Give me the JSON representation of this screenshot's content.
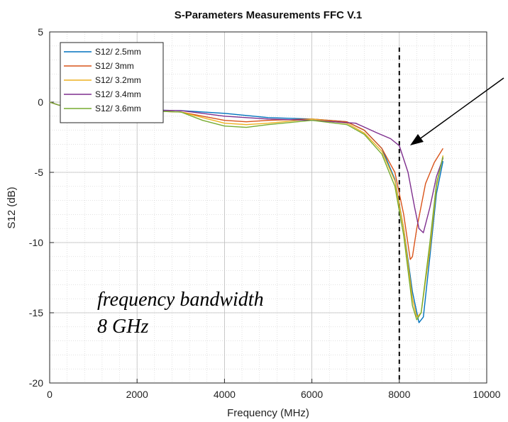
{
  "chart_data": {
    "type": "line",
    "title": "S-Parameters Measurements FFC V.1",
    "xlabel": "Frequency (MHz)",
    "ylabel": "S12 (dB)",
    "xlim": [
      0,
      10000
    ],
    "ylim": [
      -20,
      5
    ],
    "x_ticks": [
      "0",
      "2000",
      "4000",
      "6000",
      "8000",
      "10000"
    ],
    "y_ticks": [
      "-20",
      "-15",
      "-10",
      "-5",
      "0",
      "5"
    ],
    "grid": true,
    "minor_grid": true,
    "legend_position": "top-left",
    "series": [
      {
        "name": "S12/ 2.5mm",
        "color": "#0072BD",
        "x": [
          0,
          200,
          500,
          1000,
          2000,
          3000,
          4000,
          5000,
          6000,
          6800,
          7200,
          7600,
          7900,
          8100,
          8300,
          8450,
          8550,
          8700,
          8850,
          9000
        ],
        "y": [
          0,
          -0.2,
          -0.4,
          -0.5,
          -0.55,
          -0.6,
          -0.8,
          -1.1,
          -1.2,
          -1.4,
          -2.0,
          -3.3,
          -5.5,
          -9.0,
          -13.5,
          -15.7,
          -15.3,
          -11.0,
          -6.5,
          -4.2
        ]
      },
      {
        "name": "S12/ 3mm",
        "color": "#D95319",
        "x": [
          0,
          200,
          500,
          1000,
          2000,
          3000,
          3500,
          4000,
          4500,
          5000,
          6000,
          6800,
          7200,
          7600,
          7900,
          8100,
          8250,
          8300,
          8400,
          8600,
          8800,
          9000
        ],
        "y": [
          0,
          -0.2,
          -0.4,
          -0.5,
          -0.6,
          -0.7,
          -1.0,
          -1.3,
          -1.4,
          -1.3,
          -1.2,
          -1.4,
          -2.0,
          -3.3,
          -5.0,
          -8.0,
          -11.2,
          -11.0,
          -9.0,
          -5.8,
          -4.3,
          -3.3
        ]
      },
      {
        "name": "S12/ 3.2mm",
        "color": "#EDB120",
        "x": [
          0,
          200,
          500,
          1000,
          2000,
          3000,
          3500,
          4000,
          4500,
          5000,
          6000,
          6800,
          7200,
          7600,
          7900,
          8100,
          8300,
          8400,
          8500,
          8700,
          8850,
          9000
        ],
        "y": [
          0,
          -0.2,
          -0.4,
          -0.5,
          -0.6,
          -0.7,
          -1.1,
          -1.5,
          -1.6,
          -1.5,
          -1.2,
          -1.5,
          -2.2,
          -3.5,
          -5.6,
          -9.0,
          -14.0,
          -15.3,
          -15.0,
          -10.5,
          -6.0,
          -3.8
        ]
      },
      {
        "name": "S12/ 3.4mm",
        "color": "#7E2F8E",
        "x": [
          0,
          200,
          500,
          1000,
          2000,
          3000,
          4000,
          5000,
          6000,
          7000,
          7500,
          7800,
          8000,
          8200,
          8350,
          8450,
          8550,
          8700,
          8850,
          9000
        ],
        "y": [
          0,
          -0.2,
          -0.4,
          -0.5,
          -0.55,
          -0.6,
          -1.0,
          -1.2,
          -1.3,
          -1.5,
          -2.2,
          -2.6,
          -3.1,
          -5.0,
          -7.5,
          -9.0,
          -9.3,
          -7.5,
          -5.3,
          -4.0
        ]
      },
      {
        "name": "S12/ 3.6mm",
        "color": "#77AC30",
        "x": [
          0,
          200,
          500,
          1000,
          2000,
          3000,
          3500,
          4000,
          4500,
          5000,
          6000,
          6800,
          7200,
          7600,
          7900,
          8100,
          8300,
          8400,
          8500,
          8700,
          8850,
          9000
        ],
        "y": [
          0,
          -0.2,
          -0.4,
          -0.5,
          -0.6,
          -0.7,
          -1.3,
          -1.7,
          -1.8,
          -1.6,
          -1.3,
          -1.6,
          -2.3,
          -3.7,
          -6.0,
          -9.5,
          -14.5,
          -15.5,
          -15.0,
          -10.0,
          -5.8,
          -3.9
        ]
      }
    ],
    "marker_line_x": 8000,
    "annotation": {
      "line1": "frequency bandwidth",
      "line2": "8 GHz"
    }
  }
}
